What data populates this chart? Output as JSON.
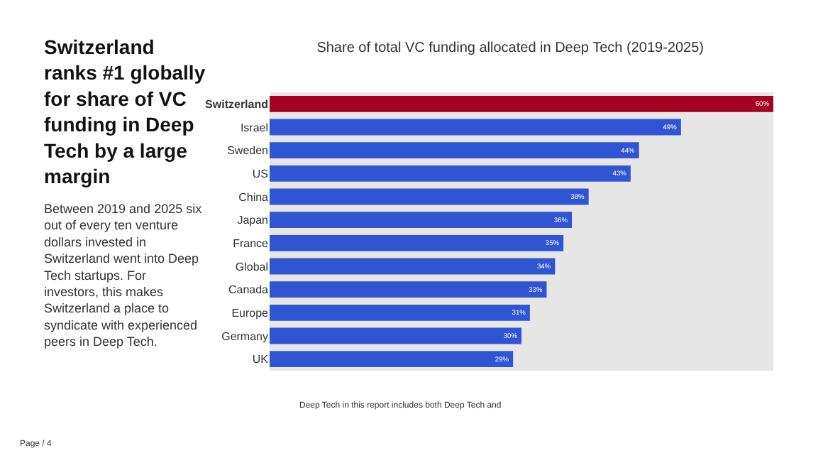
{
  "chart_data": {
    "type": "bar",
    "orientation": "horizontal",
    "title": "Share of total VC funding allocated in Deep Tech (2019-2025)",
    "categories": [
      "Switzerland",
      "Israel",
      "Sweden",
      "US",
      "China",
      "Japan",
      "France",
      "Global",
      "Canada",
      "Europe",
      "Germany",
      "UK"
    ],
    "values": [
      60,
      49,
      44,
      43,
      38,
      36,
      35,
      34,
      33,
      31,
      30,
      29
    ],
    "colors": [
      "#a50021",
      "#2f55d4",
      "#2f55d4",
      "#2f55d4",
      "#2f55d4",
      "#2f55d4",
      "#2f55d4",
      "#2f55d4",
      "#2f55d4",
      "#2f55d4",
      "#2f55d4",
      "#2f55d4"
    ],
    "value_labels": [
      "60%",
      "49%",
      "44%",
      "43%",
      "38%",
      "36%",
      "35%",
      "34%",
      "33%",
      "31%",
      "30%",
      "29%"
    ],
    "xlim": [
      0,
      60
    ],
    "tick_labels": "y",
    "grid": false,
    "annotations": [
      "Switzerland\nranks #1 globally\nfor share of VC\nfunding in Deep\nTech by a large\nmargin",
      "Between 2019 and 2025 six\nout of every ten venture\ndollars invested in\nSwitzerland went into Deep\nTech startups. For\ninvestors, this makes\nSwitzerland a place to\nsyndicate with experienced\npeers in Deep Tech.",
      "Deep Tech in this report includes both Deep Tech and",
      "Page / 4"
    ]
  }
}
